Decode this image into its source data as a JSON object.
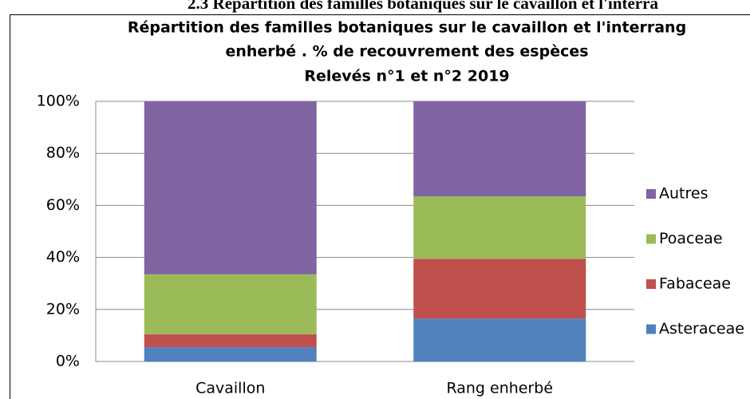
{
  "heading": "2.3 Répartition des familles botaniques sur le cavaillon et l'interra",
  "chart_data": {
    "type": "stacked_bar",
    "title": [
      "Répartition des familles botaniques sur le cavaillon et l'interrang",
      "enherbé . % de recouvrement des espèces",
      "Relevés n°1 et n°2 2019"
    ],
    "categories": [
      "Cavaillon",
      "Rang enherbé"
    ],
    "series": [
      {
        "name": "Asteraceae",
        "color": "#4f81bd",
        "values": [
          5.5,
          16.5
        ]
      },
      {
        "name": "Fabaceae",
        "color": "#c0504d",
        "values": [
          5,
          23
        ]
      },
      {
        "name": "Poaceae",
        "color": "#9bbb59",
        "values": [
          23,
          24
        ]
      },
      {
        "name": "Autres",
        "color": "#8064a2",
        "values": [
          66.5,
          36.5
        ]
      }
    ],
    "ylim": [
      0,
      100
    ],
    "yticks": [
      {
        "value": 0,
        "label": "0%"
      },
      {
        "value": 20,
        "label": "20%"
      },
      {
        "value": 40,
        "label": "40%"
      },
      {
        "value": 60,
        "label": "60%"
      },
      {
        "value": 80,
        "label": "80%"
      },
      {
        "value": 100,
        "label": "100%"
      }
    ],
    "grid": true,
    "legend": "right"
  }
}
